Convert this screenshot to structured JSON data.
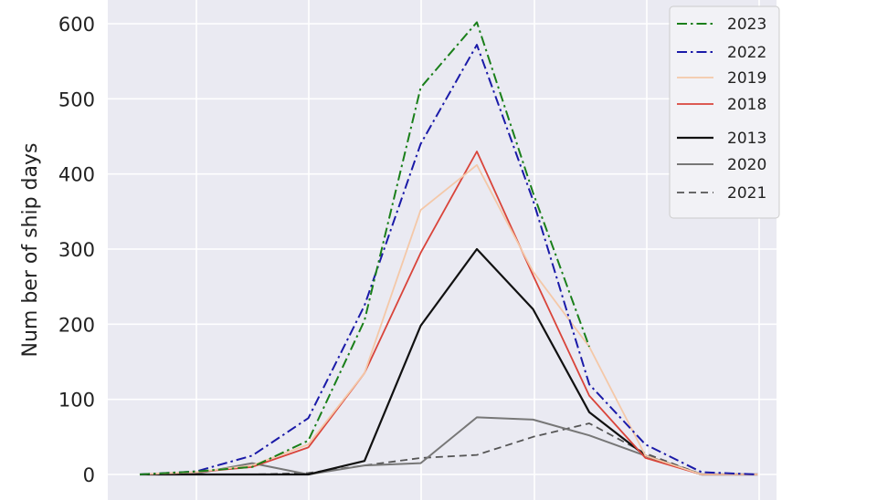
{
  "chart_data": {
    "type": "line",
    "ylabel": "Num ber of ship days",
    "xlabel": "",
    "title": "",
    "ylim": [
      0,
      620
    ],
    "yticks": [
      0,
      100,
      200,
      300,
      400,
      500,
      600
    ],
    "x": [
      1,
      2,
      3,
      4,
      5,
      6,
      7,
      8,
      9,
      10,
      11,
      12
    ],
    "grid": true,
    "legend_position": "top-right",
    "series": [
      {
        "name": "2023",
        "color": "#1a7f1a",
        "dash": "dashdot",
        "width": 2,
        "values": [
          0,
          4,
          10,
          45,
          205,
          515,
          602,
          375,
          170,
          null,
          null,
          null
        ]
      },
      {
        "name": "2022",
        "color": "#1a1aa8",
        "dash": "dashdot",
        "width": 2,
        "values": [
          0,
          4,
          25,
          75,
          225,
          440,
          572,
          365,
          120,
          40,
          3,
          0
        ]
      },
      {
        "name": "2019",
        "color": "#f4c8a8",
        "dash": "solid",
        "width": 1.8,
        "values": [
          0,
          3,
          12,
          40,
          135,
          352,
          412,
          270,
          170,
          25,
          0,
          0
        ]
      },
      {
        "name": "2018",
        "color": "#d9443a",
        "dash": "solid",
        "width": 1.8,
        "values": [
          0,
          3,
          10,
          36,
          135,
          295,
          430,
          265,
          105,
          22,
          0,
          0
        ]
      },
      {
        "name": "2013",
        "color": "#111111",
        "dash": "solid",
        "width": 2.2,
        "values": [
          0,
          0,
          0,
          0,
          18,
          198,
          300,
          220,
          83,
          25,
          0,
          0
        ]
      },
      {
        "name": "2020",
        "color": "#777777",
        "dash": "solid",
        "width": 2,
        "values": [
          0,
          1,
          15,
          0,
          12,
          15,
          76,
          73,
          52,
          25,
          0,
          0
        ]
      },
      {
        "name": "2021",
        "color": "#555555",
        "dash": "dashed",
        "width": 1.8,
        "values": [
          0,
          0,
          0,
          2,
          12,
          22,
          26,
          50,
          68,
          28,
          0,
          0
        ]
      }
    ]
  }
}
